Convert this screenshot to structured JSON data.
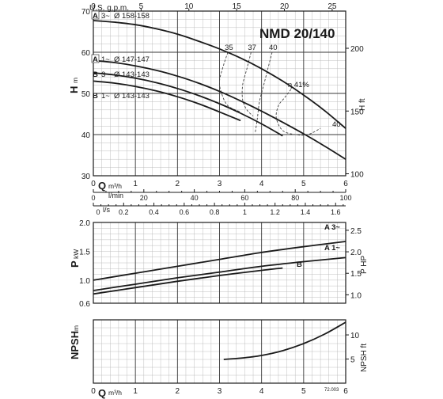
{
  "chart_data": [
    {
      "type": "line",
      "title": "NMD 20/140",
      "ylabel": "H",
      "ylabel_unit": "m",
      "ylabel2": "H ft",
      "x_unit": "m³/h",
      "ylim": [
        30,
        70
      ],
      "ylim2": [
        100,
        200
      ],
      "xlim": [
        0,
        6
      ],
      "x_ticks": [
        "0",
        "1",
        "2",
        "3",
        "4",
        "5",
        "6"
      ],
      "y_ticks": [
        "30",
        "40",
        "50",
        "60",
        "70"
      ],
      "y2_ticks": [
        "100",
        "150",
        "200"
      ],
      "top_axis_label": "U.S. g.p.m.",
      "top_axis_ticks": [
        "0",
        "5",
        "10",
        "15",
        "20",
        "25"
      ],
      "lmin_label": "l/min",
      "lmin_ticks": [
        "0",
        "20",
        "40",
        "60",
        "80",
        "100"
      ],
      "ls_label": "l/s",
      "ls_ticks": [
        "0",
        "0.2",
        "0.4",
        "0.6",
        "0.8",
        "1",
        "1.2",
        "1.4",
        "1.6"
      ],
      "series": [
        {
          "name": "A 3~ Ø 158-158",
          "id_letter": "A",
          "phase": "3~",
          "diameter": "Ø 158-158",
          "x": [
            0,
            0.5,
            1,
            1.5,
            2,
            2.5,
            3,
            3.5,
            4,
            4.5,
            5,
            5.5,
            6
          ],
          "y": [
            67.7,
            67.3,
            66.7,
            65.7,
            64.4,
            62.7,
            60.8,
            58.6,
            56.0,
            53.0,
            49.6,
            45.8,
            41.5
          ]
        },
        {
          "name": "A 1~ Ø 147-147",
          "id_letter": "A",
          "phase": "1~",
          "diameter": "Ø 147-147",
          "x": [
            0,
            0.5,
            1,
            1.5,
            2,
            2.5,
            3,
            3.5,
            4,
            4.5,
            5,
            5.5,
            6
          ],
          "y": [
            58.0,
            57.5,
            56.7,
            55.6,
            54.2,
            52.5,
            50.5,
            48.2,
            45.7,
            43.0,
            40.2,
            37.2,
            34.0
          ]
        },
        {
          "name": "B 3~ Ø 143-143",
          "id_letter": "B",
          "phase": "3~",
          "diameter": "Ø 143-143",
          "x": [
            0,
            0.5,
            1,
            1.5,
            2,
            2.5,
            3,
            3.5,
            4,
            4.5
          ],
          "y": [
            55.0,
            54.5,
            53.7,
            52.6,
            51.2,
            49.5,
            47.5,
            45.2,
            42.6,
            39.7
          ]
        },
        {
          "name": "B 1~ Ø 143-143",
          "id_letter": "B",
          "phase": "1~",
          "diameter": "Ø 143-143",
          "x": [
            0,
            0.5,
            1,
            1.5,
            2,
            2.5,
            3,
            3.5
          ],
          "y": [
            53.0,
            52.5,
            51.7,
            50.6,
            49.2,
            47.5,
            45.5,
            43.4
          ]
        }
      ],
      "efficiency_curves": [
        {
          "label": "35",
          "x": [
            3.2,
            3.1,
            3.0,
            3.05,
            3.2,
            3.5
          ],
          "y": [
            60,
            57,
            53,
            50,
            47,
            45.5
          ]
        },
        {
          "label": "37",
          "x": [
            3.75,
            3.65,
            3.55,
            3.55,
            3.65,
            3.8
          ],
          "y": [
            60,
            56,
            52,
            48.5,
            46,
            44.5
          ]
        },
        {
          "label": "40",
          "x": [
            4.25,
            4.15,
            4.05,
            3.95,
            3.9,
            3.85
          ],
          "y": [
            60,
            56,
            52,
            48,
            44,
            40.5
          ]
        },
        {
          "label": "η 41%",
          "x": [
            4.7,
            4.55,
            4.4,
            4.35,
            4.5,
            4.8,
            5.1,
            5.4
          ],
          "y": [
            51,
            49,
            47,
            44,
            41,
            40,
            40,
            41.5
          ]
        }
      ],
      "extra_label": "40"
    },
    {
      "type": "line",
      "ylabel": "P",
      "ylabel_unit": "kW",
      "ylabel2": "P HP",
      "ylim": [
        0.6,
        2.0
      ],
      "ylim2": [
        0.8,
        2.68
      ],
      "xlim": [
        0,
        6
      ],
      "y_ticks": [
        "0.6",
        "1.0",
        "1.5",
        "2.0"
      ],
      "y2_ticks": [
        "1.0",
        "1.5",
        "2.0",
        "2.5"
      ],
      "series": [
        {
          "name": "A 3~",
          "x": [
            0,
            1,
            2,
            3,
            4,
            5,
            6
          ],
          "y": [
            1.0,
            1.12,
            1.24,
            1.36,
            1.48,
            1.58,
            1.67
          ]
        },
        {
          "name": "A 1~",
          "x": [
            0,
            1,
            2,
            3,
            4,
            5,
            6
          ],
          "y": [
            0.82,
            0.93,
            1.04,
            1.14,
            1.24,
            1.32,
            1.39
          ]
        },
        {
          "name": "B",
          "x": [
            0,
            1,
            2,
            3,
            4,
            4.5
          ],
          "y": [
            0.76,
            0.87,
            0.98,
            1.08,
            1.17,
            1.21
          ]
        }
      ]
    },
    {
      "type": "line",
      "ylabel": "NPSH",
      "ylabel_unit": "m",
      "ylabel2": "NPSH ft",
      "xlabel": "Q",
      "x_unit": "m³/h",
      "ylim": [
        0,
        4
      ],
      "ylim2": [
        0,
        13.12
      ],
      "xlim": [
        0,
        6
      ],
      "x_ticks": [
        "0",
        "1",
        "2",
        "3",
        "4",
        "5",
        "6"
      ],
      "y2_ticks": [
        "5",
        "10"
      ],
      "series": [
        {
          "name": "NPSH",
          "x": [
            3.1,
            3.5,
            4.0,
            4.5,
            5.0,
            5.5,
            6.0
          ],
          "y": [
            1.5,
            1.58,
            1.75,
            2.05,
            2.5,
            3.1,
            3.85
          ]
        }
      ],
      "code": "72.003"
    }
  ]
}
